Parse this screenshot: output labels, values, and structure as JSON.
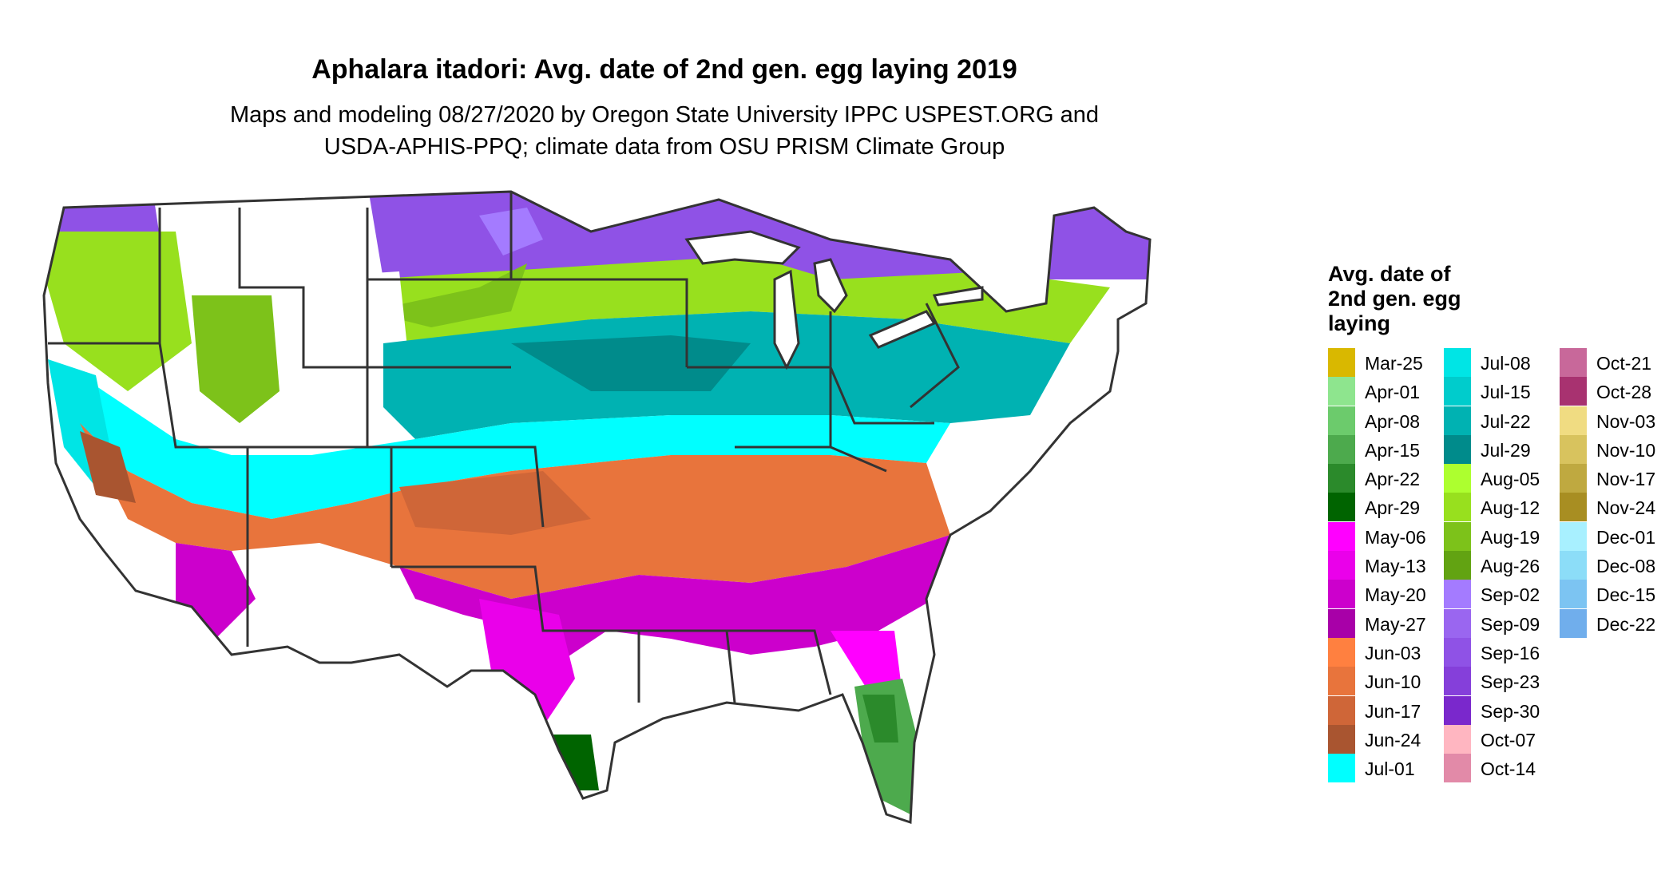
{
  "title": "Aphalara itadori: Avg. date of 2nd gen. egg laying 2019",
  "subtitle_line1": "Maps and modeling 08/27/2020 by Oregon State University IPPC USPEST.ORG and",
  "subtitle_line2": "USDA-APHIS-PPQ; climate data from OSU PRISM Climate Group",
  "legend": {
    "title_lines": [
      "Avg. date of",
      "2nd gen. egg",
      "laying"
    ],
    "columns": [
      [
        {
          "label": "Mar-25",
          "color": "#D9B800"
        },
        {
          "label": "Apr-01",
          "color": "#8EE58E"
        },
        {
          "label": "Apr-08",
          "color": "#6CCB6C"
        },
        {
          "label": "Apr-15",
          "color": "#4DAA4D"
        },
        {
          "label": "Apr-22",
          "color": "#2B8A2B"
        },
        {
          "label": "Apr-29",
          "color": "#006400"
        },
        {
          "label": "May-06",
          "color": "#FF00FF"
        },
        {
          "label": "May-13",
          "color": "#EA00EA"
        },
        {
          "label": "May-20",
          "color": "#CC00CC"
        },
        {
          "label": "May-27",
          "color": "#A800A8"
        },
        {
          "label": "Jun-03",
          "color": "#FF8040"
        },
        {
          "label": "Jun-10",
          "color": "#E8743C"
        },
        {
          "label": "Jun-17",
          "color": "#CF6638"
        },
        {
          "label": "Jun-24",
          "color": "#A95530"
        },
        {
          "label": "Jul-01",
          "color": "#00FFFF"
        }
      ],
      [
        {
          "label": "Jul-08",
          "color": "#00E5E5"
        },
        {
          "label": "Jul-15",
          "color": "#00CCCC"
        },
        {
          "label": "Jul-22",
          "color": "#00B2B2"
        },
        {
          "label": "Jul-29",
          "color": "#008B8B"
        },
        {
          "label": "Aug-05",
          "color": "#ADFF2F"
        },
        {
          "label": "Aug-12",
          "color": "#98E01E"
        },
        {
          "label": "Aug-19",
          "color": "#7DC21A"
        },
        {
          "label": "Aug-26",
          "color": "#62A312"
        },
        {
          "label": "Sep-02",
          "color": "#A47BFF"
        },
        {
          "label": "Sep-09",
          "color": "#9A66F0"
        },
        {
          "label": "Sep-16",
          "color": "#8F52E6"
        },
        {
          "label": "Sep-23",
          "color": "#853FDA"
        },
        {
          "label": "Sep-30",
          "color": "#7A28CC"
        },
        {
          "label": "Oct-07",
          "color": "#FFB6C1"
        },
        {
          "label": "Oct-14",
          "color": "#E28AA8"
        }
      ],
      [
        {
          "label": "Oct-21",
          "color": "#C8689A"
        },
        {
          "label": "Oct-28",
          "color": "#A83270"
        },
        {
          "label": "Nov-03",
          "color": "#F0DC82"
        },
        {
          "label": "Nov-10",
          "color": "#D8C35E"
        },
        {
          "label": "Nov-17",
          "color": "#BFA940"
        },
        {
          "label": "Nov-24",
          "color": "#A88E22"
        },
        {
          "label": "Dec-01",
          "color": "#A8F0FF"
        },
        {
          "label": "Dec-08",
          "color": "#8CDDF8"
        },
        {
          "label": "Dec-15",
          "color": "#7CC4F2"
        },
        {
          "label": "Dec-22",
          "color": "#70AEEC"
        }
      ]
    ]
  }
}
